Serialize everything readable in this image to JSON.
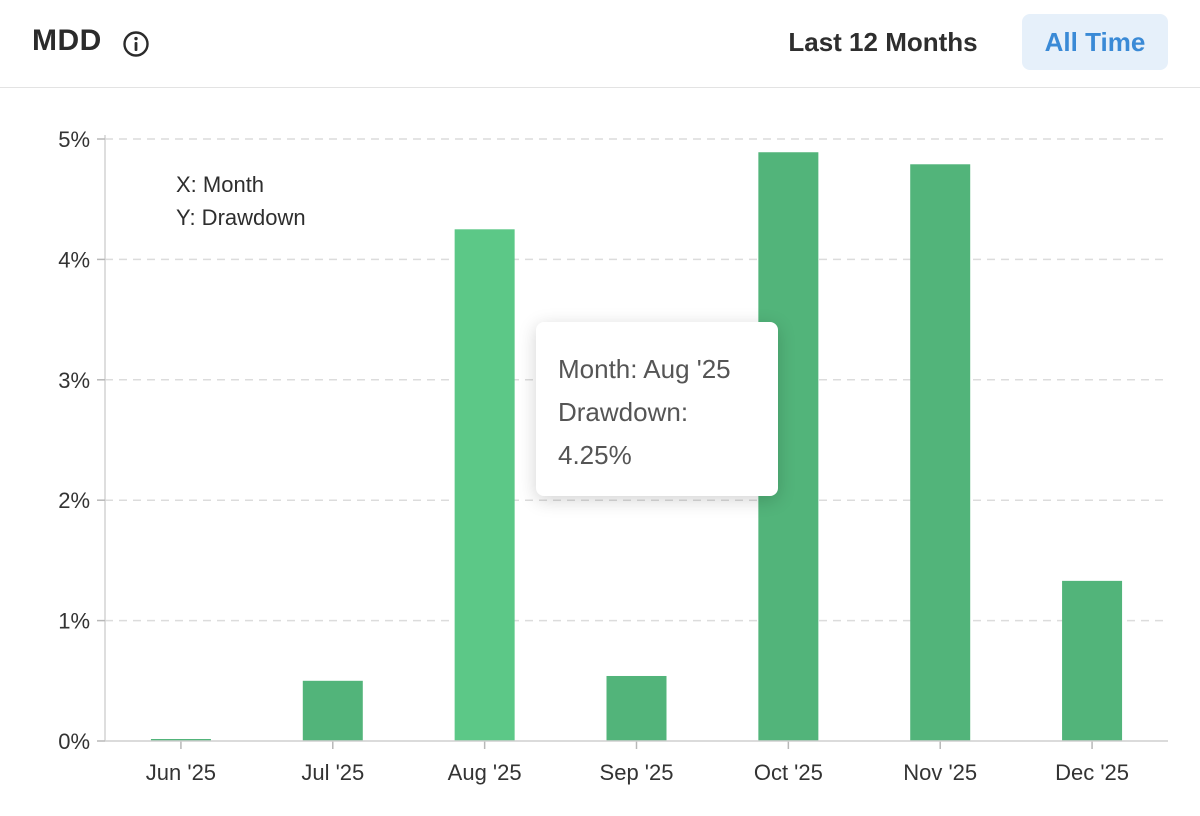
{
  "header": {
    "title": "MDD",
    "info_icon": "info-circle-icon",
    "range_buttons": [
      {
        "label": "Last 12 Months",
        "selected": false
      },
      {
        "label": "All Time",
        "selected": true
      }
    ]
  },
  "colors": {
    "bar": "#52b47a",
    "bar_highlight": "#5cc887",
    "accent": "#3a8ad6"
  },
  "chart_data": {
    "type": "bar",
    "categories": [
      "Jun '25",
      "Jul '25",
      "Aug '25",
      "Sep '25",
      "Oct '25",
      "Nov '25",
      "Dec '25"
    ],
    "values": [
      0.01,
      0.5,
      4.25,
      0.54,
      4.89,
      4.79,
      1.33
    ],
    "unit": "%",
    "ylim": [
      0,
      5
    ],
    "yticks": [
      "0%",
      "1%",
      "2%",
      "3%",
      "4%",
      "5%"
    ],
    "grid": true,
    "legend": {
      "x_label": "X: Month",
      "y_label": "Y: Drawdown",
      "placement": "top-left"
    },
    "highlighted_index": 2
  },
  "tooltip": {
    "month_line": "Month:  Aug '25",
    "drawdown_label": "Drawdown:",
    "drawdown_value": "4.25%"
  }
}
